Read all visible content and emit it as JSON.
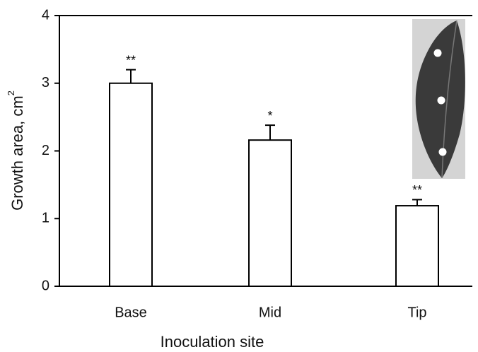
{
  "chart_data": {
    "type": "bar",
    "y_label": "Growth area, cm",
    "y_label_superscript": "2",
    "x_label": "Inoculation site",
    "categories": [
      "Base",
      "Mid",
      "Tip"
    ],
    "values": [
      3.0,
      2.16,
      1.19
    ],
    "errors": [
      0.2,
      0.22,
      0.09
    ],
    "annotations": [
      "**",
      "*",
      "**"
    ],
    "color": "#ffffff",
    "ylim": [
      0,
      4
    ],
    "yticks": [
      0,
      1,
      2,
      3,
      4
    ]
  }
}
